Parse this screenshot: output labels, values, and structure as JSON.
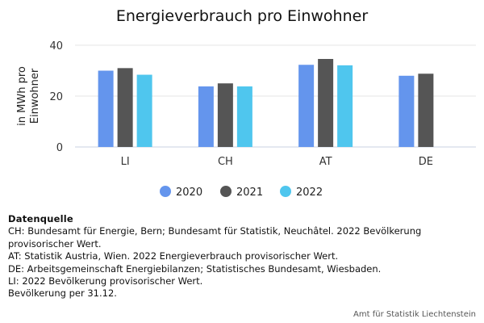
{
  "chart_data": {
    "type": "bar",
    "title": "Energieverbrauch pro Einwohner",
    "ylabel": "in MWh pro Einwohner",
    "ylabel_lines": [
      "in MWh pro",
      "Einwohner"
    ],
    "categories": [
      "LI",
      "CH",
      "AT",
      "DE"
    ],
    "series": [
      {
        "name": "2020",
        "color": "#6495ed",
        "values": [
          30.0,
          23.8,
          32.3,
          28.0
        ]
      },
      {
        "name": "2021",
        "color": "#555555",
        "values": [
          31.0,
          25.0,
          34.6,
          28.8
        ]
      },
      {
        "name": "2022",
        "color": "#4fc6ee",
        "values": [
          28.4,
          23.8,
          32.1,
          null
        ]
      }
    ],
    "ylim": [
      0,
      40
    ],
    "yticks": [
      0,
      20,
      40
    ],
    "grid": true,
    "legend_position": "bottom"
  },
  "notes": {
    "heading": "Datenquelle",
    "lines": [
      "CH: Bundesamt für Energie, Bern; Bundesamt für Statistik, Neuchâtel. 2022 Bevölkerung",
      "provisorischer Wert.",
      "AT: Statistik Austria, Wien. 2022 Energieverbrauch provisorischer Wert.",
      "DE: Arbeitsgemeinschaft Energiebilanzen; Statistisches Bundesamt, Wiesbaden.",
      "LI: 2022 Bevölkerung provisorischer Wert.",
      "Bevölkerung per 31.12."
    ]
  },
  "credit": "Amt für Statistik Liechtenstein"
}
